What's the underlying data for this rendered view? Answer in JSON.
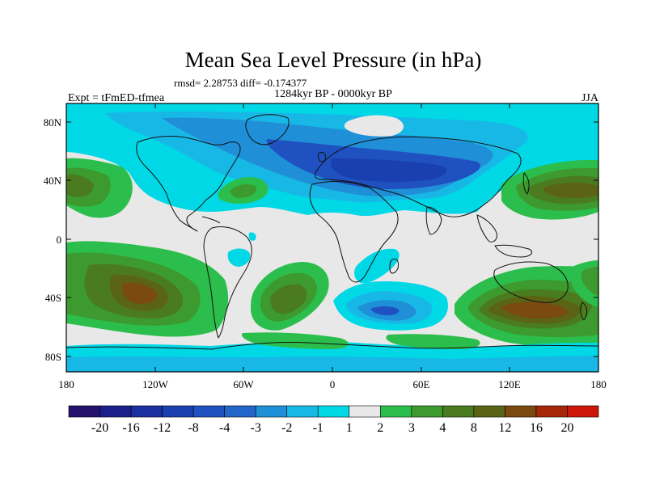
{
  "title": "Mean Sea Level Pressure (in hPa)",
  "stats": "rmsd= 2.28753  diff= -0.174377",
  "period": "1284kyr BP - 0000kyr BP",
  "experiment": "Expt = tFmED-tfmea",
  "season": "JJA",
  "lat_ticks": [
    "80N",
    "40N",
    "0",
    "40S",
    "80S"
  ],
  "lon_ticks": [
    "180",
    "120W",
    "60W",
    "0",
    "60E",
    "120E",
    "180"
  ],
  "colorbar": {
    "labels": [
      "-20",
      "-16",
      "-12",
      "-8",
      "-4",
      "-3",
      "-2",
      "-1",
      "1",
      "2",
      "3",
      "4",
      "8",
      "12",
      "16",
      "20"
    ],
    "colors": [
      "#24126e",
      "#1a1f8a",
      "#1a2fa0",
      "#1a40b0",
      "#1f52c0",
      "#2166c8",
      "#1f8fd8",
      "#18b8e6",
      "#00d8e6",
      "#e8e8e8",
      "#2cbe4c",
      "#3d9a2f",
      "#4a7c1f",
      "#5a6414",
      "#7a4a10",
      "#a6260a",
      "#cc1608"
    ]
  },
  "field": {
    "background": "#e8e8e8",
    "colors": {
      "lneg1": "#00d8e6",
      "lneg2": "#18b8e6",
      "lneg3": "#1f8fd8",
      "lneg4": "#1f52c0",
      "lneg5": "#1a40b0",
      "lpos1": "#2cbe4c",
      "lpos2": "#3d9a2f",
      "lpos3": "#4a7c1f",
      "lpos4": "#5a6414",
      "lpos5": "#7a4a10"
    }
  }
}
